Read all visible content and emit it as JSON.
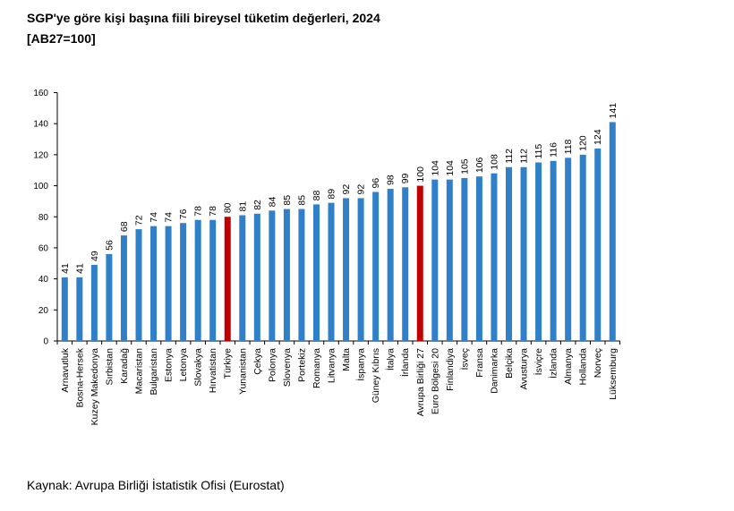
{
  "header": {
    "title": "SGP'ye göre kişi başına fiili bireysel tüketim değerleri, 2024",
    "subtitle": "[AB27=100]"
  },
  "footer": {
    "source": "Kaynak: Avrupa Birliği İstatistik Ofisi (Eurostat)"
  },
  "colors": {
    "default_bar": "#2f80c8",
    "highlight_bar": "#c00000",
    "axis": "#000000"
  },
  "chart_data": {
    "type": "bar",
    "title": "SGP'ye göre kişi başına fiili bireysel tüketim değerleri, 2024",
    "subtitle": "[AB27=100]",
    "xlabel": "",
    "ylabel": "",
    "ylim": [
      0,
      160
    ],
    "yticks": [
      0,
      20,
      40,
      60,
      80,
      100,
      120,
      140,
      160
    ],
    "grid": false,
    "legend": "none",
    "categories": [
      "Arnavutluk",
      "Bosna-Hersek",
      "Kuzey Makedonya",
      "Sırbistan",
      "Karadağ",
      "Macaristan",
      "Bulgaristan",
      "Estonya",
      "Letonya",
      "Slovakya",
      "Hırvatistan",
      "Türkiye",
      "Yunanistan",
      "Çekya",
      "Polonya",
      "Slovenya",
      "Portekiz",
      "Romanya",
      "Litvanya",
      "Malta",
      "İspanya",
      "Güney Kıbrıs",
      "İtalya",
      "İrlanda",
      "Avrupa Birliği 27",
      "Euro Bölgesi 20",
      "Finlandiya",
      "İsveç",
      "Fransa",
      "Danimarka",
      "Belçika",
      "Avusturya",
      "İsviçre",
      "İzlanda",
      "Almanya",
      "Hollanda",
      "Norveç",
      "Lüksemburg"
    ],
    "values": [
      41,
      41,
      49,
      56,
      68,
      72,
      74,
      74,
      76,
      78,
      78,
      80,
      81,
      82,
      84,
      85,
      85,
      88,
      89,
      92,
      92,
      96,
      98,
      99,
      100,
      104,
      104,
      105,
      106,
      108,
      112,
      112,
      115,
      116,
      118,
      120,
      124,
      141
    ],
    "value_labels": [
      "41",
      "41",
      "49",
      "56",
      "68",
      "72",
      "74",
      "74",
      "76",
      "78",
      "78",
      "80",
      "81",
      "82",
      "84",
      "85",
      "85",
      "88",
      "89",
      "92",
      "92",
      "96",
      "98",
      "99",
      "100",
      "104",
      "104",
      "105",
      "106",
      "108",
      "112",
      "112",
      "115",
      "116",
      "118",
      "120",
      "124",
      "141"
    ],
    "highlighted": [
      "Türkiye",
      "Avrupa Birliği 27"
    ]
  }
}
